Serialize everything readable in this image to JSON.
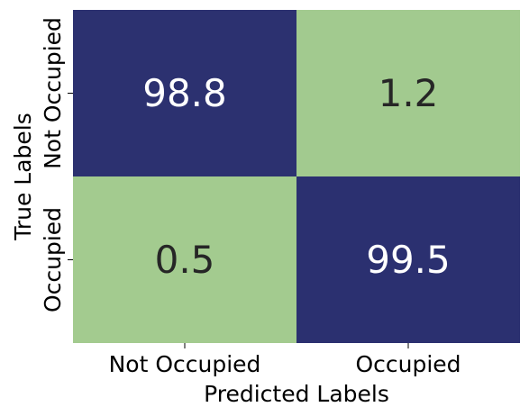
{
  "chart_data": {
    "type": "heatmap",
    "title": "",
    "xlabel": "Predicted Labels",
    "ylabel": "True Labels",
    "x_categories": [
      "Not Occupied",
      "Occupied"
    ],
    "y_categories": [
      "Not Occupied",
      "Occupied"
    ],
    "values": [
      [
        98.8,
        1.2
      ],
      [
        0.5,
        99.5
      ]
    ],
    "value_labels": [
      [
        "98.8",
        "1.2"
      ],
      [
        "0.5",
        "99.5"
      ]
    ],
    "colors": {
      "high": "#2b3070",
      "low": "#a3cb8f",
      "text_on_high": "#ffffff",
      "text_on_low": "#262626"
    },
    "colorbar": false
  }
}
